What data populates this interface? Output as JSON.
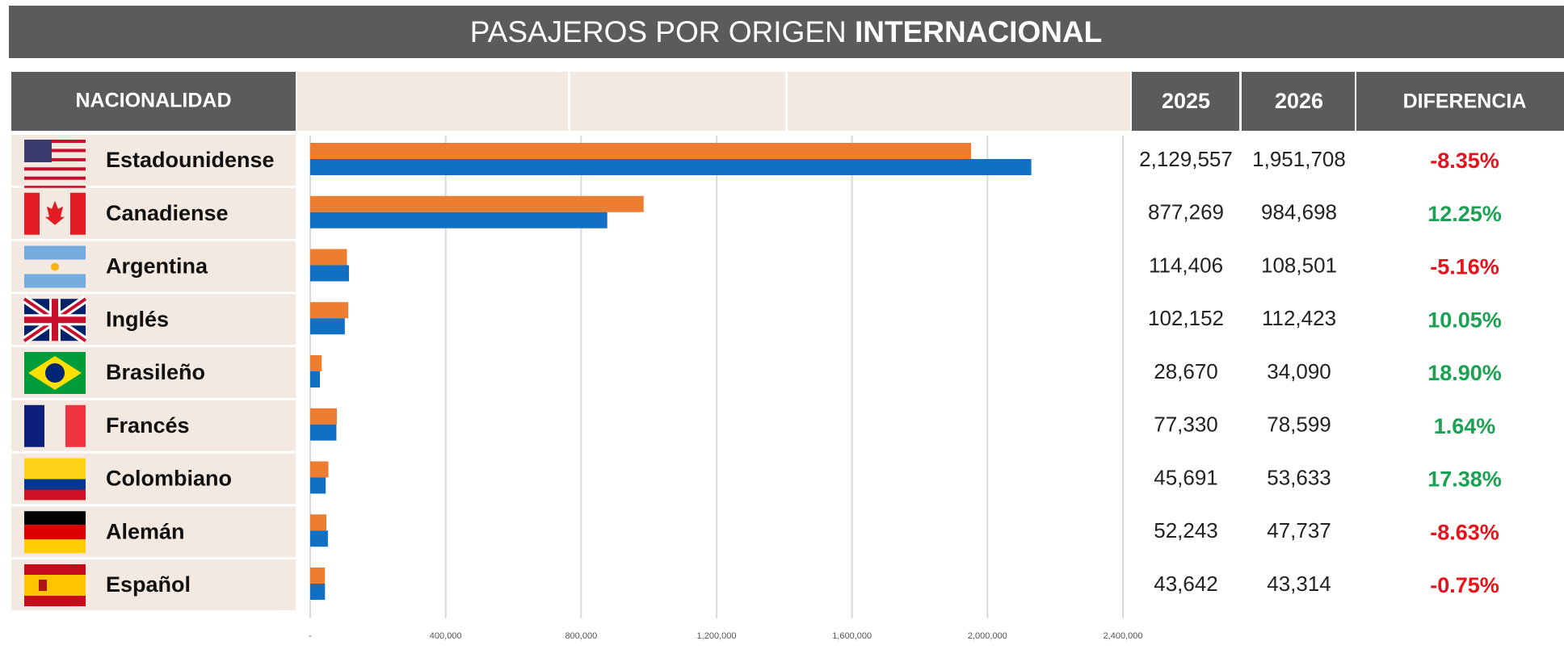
{
  "chart_data": {
    "type": "bar",
    "orientation": "horizontal",
    "title": "PASAJEROS POR ORIGEN",
    "title_bold": "INTERNACIONAL",
    "category_header": "NACIONALIDAD",
    "categories": [
      "Estadounidense",
      "Canadiense",
      "Argentina",
      "Inglés",
      "Brasileño",
      "Francés",
      "Colombiano",
      "Alemán",
      "Español"
    ],
    "series": [
      {
        "name": "2025",
        "color": "#1270c4",
        "values": [
          2129557,
          877269,
          114406,
          102152,
          28670,
          77330,
          45691,
          52243,
          43642
        ],
        "value_labels": [
          "2,129,557",
          "877,269",
          "114,406",
          "102,152",
          "28,670",
          "77,330",
          "45,691",
          "52,243",
          "43,642"
        ]
      },
      {
        "name": "2026",
        "color": "#ed7d31",
        "values": [
          1951708,
          984698,
          108501,
          112423,
          34090,
          78599,
          53633,
          47737,
          43314
        ],
        "value_labels": [
          "1,951,708",
          "984,698",
          "108,501",
          "112,423",
          "34,090",
          "78,599",
          "53,633",
          "47,737",
          "43,314"
        ]
      }
    ],
    "difference": {
      "name": "DIFERENCIA",
      "values": [
        -8.35,
        12.25,
        -5.16,
        10.05,
        18.9,
        1.64,
        17.38,
        -8.63,
        -0.75
      ],
      "value_labels": [
        "-8.35%",
        "12.25%",
        "-5.16%",
        "10.05%",
        "18.90%",
        "1.64%",
        "17.38%",
        "-8.63%",
        "-0.75%"
      ],
      "positive_color": "#1aa152",
      "negative_color": "#e8121b"
    },
    "xlim": [
      0,
      2400000
    ],
    "xticks": [
      {
        "value": 0,
        "label": "-"
      },
      {
        "value": 400000,
        "label": "400,000"
      },
      {
        "value": 800000,
        "label": "800,000"
      },
      {
        "value": 1200000,
        "label": "1,200,000"
      },
      {
        "value": 1600000,
        "label": "1,600,000"
      },
      {
        "value": 2000000,
        "label": "2,000,000"
      },
      {
        "value": 2400000,
        "label": "2,400,000"
      }
    ],
    "grid": true
  }
}
